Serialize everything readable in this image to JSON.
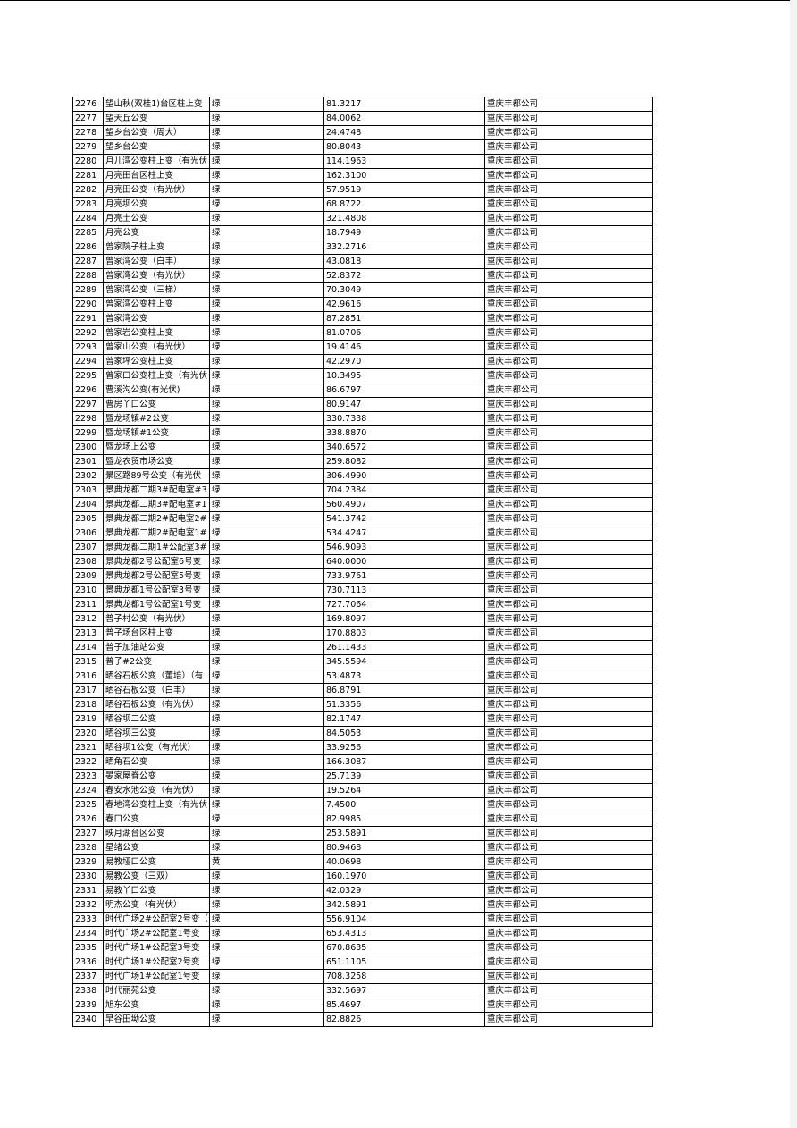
{
  "table": {
    "rows": [
      [
        "2276",
        "望山秋(双桂1)台区柱上变",
        "绿",
        "81.3217",
        "重庆丰都公司"
      ],
      [
        "2277",
        "望天丘公变",
        "绿",
        "84.0062",
        "重庆丰都公司"
      ],
      [
        "2278",
        "望乡台公变（周大）",
        "绿",
        "24.4748",
        "重庆丰都公司"
      ],
      [
        "2279",
        "望乡台公变",
        "绿",
        "80.8043",
        "重庆丰都公司"
      ],
      [
        "2280",
        "月儿湾公变柱上变（有光伏",
        "绿",
        "114.1963",
        "重庆丰都公司"
      ],
      [
        "2281",
        "月亮田台区柱上变",
        "绿",
        "162.3100",
        "重庆丰都公司"
      ],
      [
        "2282",
        "月亮田公变（有光伏）",
        "绿",
        "57.9519",
        "重庆丰都公司"
      ],
      [
        "2283",
        "月亮坝公变",
        "绿",
        "68.8722",
        "重庆丰都公司"
      ],
      [
        "2284",
        "月亮土公变",
        "绿",
        "321.4808",
        "重庆丰都公司"
      ],
      [
        "2285",
        "月亮公变",
        "绿",
        "18.7949",
        "重庆丰都公司"
      ],
      [
        "2286",
        "曾家院子柱上变",
        "绿",
        "332.2716",
        "重庆丰都公司"
      ],
      [
        "2287",
        "曾家湾公变（白丰）",
        "绿",
        "43.0818",
        "重庆丰都公司"
      ],
      [
        "2288",
        "曾家湾公变（有光伏）",
        "绿",
        "52.8372",
        "重庆丰都公司"
      ],
      [
        "2289",
        "曾家湾公变（三梯）",
        "绿",
        "70.3049",
        "重庆丰都公司"
      ],
      [
        "2290",
        "曾家湾公变柱上变",
        "绿",
        "42.9616",
        "重庆丰都公司"
      ],
      [
        "2291",
        "曾家湾公变",
        "绿",
        "87.2851",
        "重庆丰都公司"
      ],
      [
        "2292",
        "曾家岩公变柱上变",
        "绿",
        "81.0706",
        "重庆丰都公司"
      ],
      [
        "2293",
        "曾家山公变（有光伏）",
        "绿",
        "19.4146",
        "重庆丰都公司"
      ],
      [
        "2294",
        "曾家坪公变柱上变",
        "绿",
        "42.2970",
        "重庆丰都公司"
      ],
      [
        "2295",
        "曾家口公变柱上变（有光伏",
        "绿",
        "10.3495",
        "重庆丰都公司"
      ],
      [
        "2296",
        "曹溪沟公变(有光伏)",
        "绿",
        "86.6797",
        "重庆丰都公司"
      ],
      [
        "2297",
        "曹房丫口公变",
        "绿",
        "80.9147",
        "重庆丰都公司"
      ],
      [
        "2298",
        "暨龙场镇#2公变",
        "绿",
        "330.7338",
        "重庆丰都公司"
      ],
      [
        "2299",
        "暨龙场镇#1公变",
        "绿",
        "338.8870",
        "重庆丰都公司"
      ],
      [
        "2300",
        "暨龙场上公变",
        "绿",
        "340.6572",
        "重庆丰都公司"
      ],
      [
        "2301",
        "暨龙农贸市场公变",
        "绿",
        "259.8082",
        "重庆丰都公司"
      ],
      [
        "2302",
        "景区路89号公变（有光伏",
        "绿",
        "306.4990",
        "重庆丰都公司"
      ],
      [
        "2303",
        "景典龙都二期3#配电室#3",
        "绿",
        "704.2384",
        "重庆丰都公司"
      ],
      [
        "2304",
        "景典龙都二期3#配电室#1",
        "绿",
        "560.4907",
        "重庆丰都公司"
      ],
      [
        "2305",
        "景典龙都二期2#配电室2#",
        "绿",
        "541.3742",
        "重庆丰都公司"
      ],
      [
        "2306",
        "景典龙都二期2#配电室1#",
        "绿",
        "534.4247",
        "重庆丰都公司"
      ],
      [
        "2307",
        "景典龙都二期1#公配室3#",
        "绿",
        "546.9093",
        "重庆丰都公司"
      ],
      [
        "2308",
        "景典龙都2号公配室6号变",
        "绿",
        "640.0000",
        "重庆丰都公司"
      ],
      [
        "2309",
        "景典龙都2号公配室5号变",
        "绿",
        "733.9761",
        "重庆丰都公司"
      ],
      [
        "2310",
        "景典龙都1号公配室3号变",
        "绿",
        "730.7113",
        "重庆丰都公司"
      ],
      [
        "2311",
        "景典龙都1号公配室1号变",
        "绿",
        "727.7064",
        "重庆丰都公司"
      ],
      [
        "2312",
        "普子村公变（有光伏）",
        "绿",
        "169.8097",
        "重庆丰都公司"
      ],
      [
        "2313",
        "普子场台区柱上变",
        "绿",
        "170.8803",
        "重庆丰都公司"
      ],
      [
        "2314",
        "普子加油站公变",
        "绿",
        "261.1433",
        "重庆丰都公司"
      ],
      [
        "2315",
        "普子#2公变",
        "绿",
        "345.5594",
        "重庆丰都公司"
      ],
      [
        "2316",
        "晒谷石板公变（董培）（有",
        "绿",
        "53.4873",
        "重庆丰都公司"
      ],
      [
        "2317",
        "晒谷石板公变（白丰）",
        "绿",
        "86.8791",
        "重庆丰都公司"
      ],
      [
        "2318",
        "晒谷石板公变（有光伏）",
        "绿",
        "51.3356",
        "重庆丰都公司"
      ],
      [
        "2319",
        "晒谷坝二公变",
        "绿",
        "82.1747",
        "重庆丰都公司"
      ],
      [
        "2320",
        "晒谷坝三公变",
        "绿",
        "84.5053",
        "重庆丰都公司"
      ],
      [
        "2321",
        "晒谷坝1公变（有光伏）",
        "绿",
        "33.9256",
        "重庆丰都公司"
      ],
      [
        "2322",
        "晒角石公变",
        "绿",
        "166.3087",
        "重庆丰都公司"
      ],
      [
        "2323",
        "晏家屋脊公变",
        "绿",
        "25.7139",
        "重庆丰都公司"
      ],
      [
        "2324",
        "春安水池公变（有光伏）",
        "绿",
        "19.5264",
        "重庆丰都公司"
      ],
      [
        "2325",
        "春地湾公变柱上变（有光伏",
        "绿",
        "7.4500",
        "重庆丰都公司"
      ],
      [
        "2326",
        "春口公变",
        "绿",
        "82.9985",
        "重庆丰都公司"
      ],
      [
        "2327",
        "映月湖台区公变",
        "绿",
        "253.5891",
        "重庆丰都公司"
      ],
      [
        "2328",
        "星绪公变",
        "绿",
        "80.9468",
        "重庆丰都公司"
      ],
      [
        "2329",
        "易教垭口公变",
        "黄",
        "40.0698",
        "重庆丰都公司"
      ],
      [
        "2330",
        "易教公变（三双）",
        "绿",
        "160.1970",
        "重庆丰都公司"
      ],
      [
        "2331",
        "易教丫口公变",
        "绿",
        "42.0329",
        "重庆丰都公司"
      ],
      [
        "2332",
        "明杰公变（有光伏）",
        "绿",
        "342.5891",
        "重庆丰都公司"
      ],
      [
        "2333",
        "时代广场2#公配室2号变（",
        "绿",
        "556.9104",
        "重庆丰都公司"
      ],
      [
        "2334",
        "时代广场2#公配室1号变",
        "绿",
        "653.4313",
        "重庆丰都公司"
      ],
      [
        "2335",
        "时代广场1#公配室3号变",
        "绿",
        "670.8635",
        "重庆丰都公司"
      ],
      [
        "2336",
        "时代广场1#公配室2号变",
        "绿",
        "651.1105",
        "重庆丰都公司"
      ],
      [
        "2337",
        "时代广场1#公配室1号变",
        "绿",
        "708.3258",
        "重庆丰都公司"
      ],
      [
        "2338",
        "时代丽苑公变",
        "绿",
        "332.5697",
        "重庆丰都公司"
      ],
      [
        "2339",
        "旭东公变",
        "绿",
        "85.4697",
        "重庆丰都公司"
      ],
      [
        "2340",
        "早谷田坳公变",
        "绿",
        "82.8826",
        "重庆丰都公司"
      ]
    ]
  }
}
